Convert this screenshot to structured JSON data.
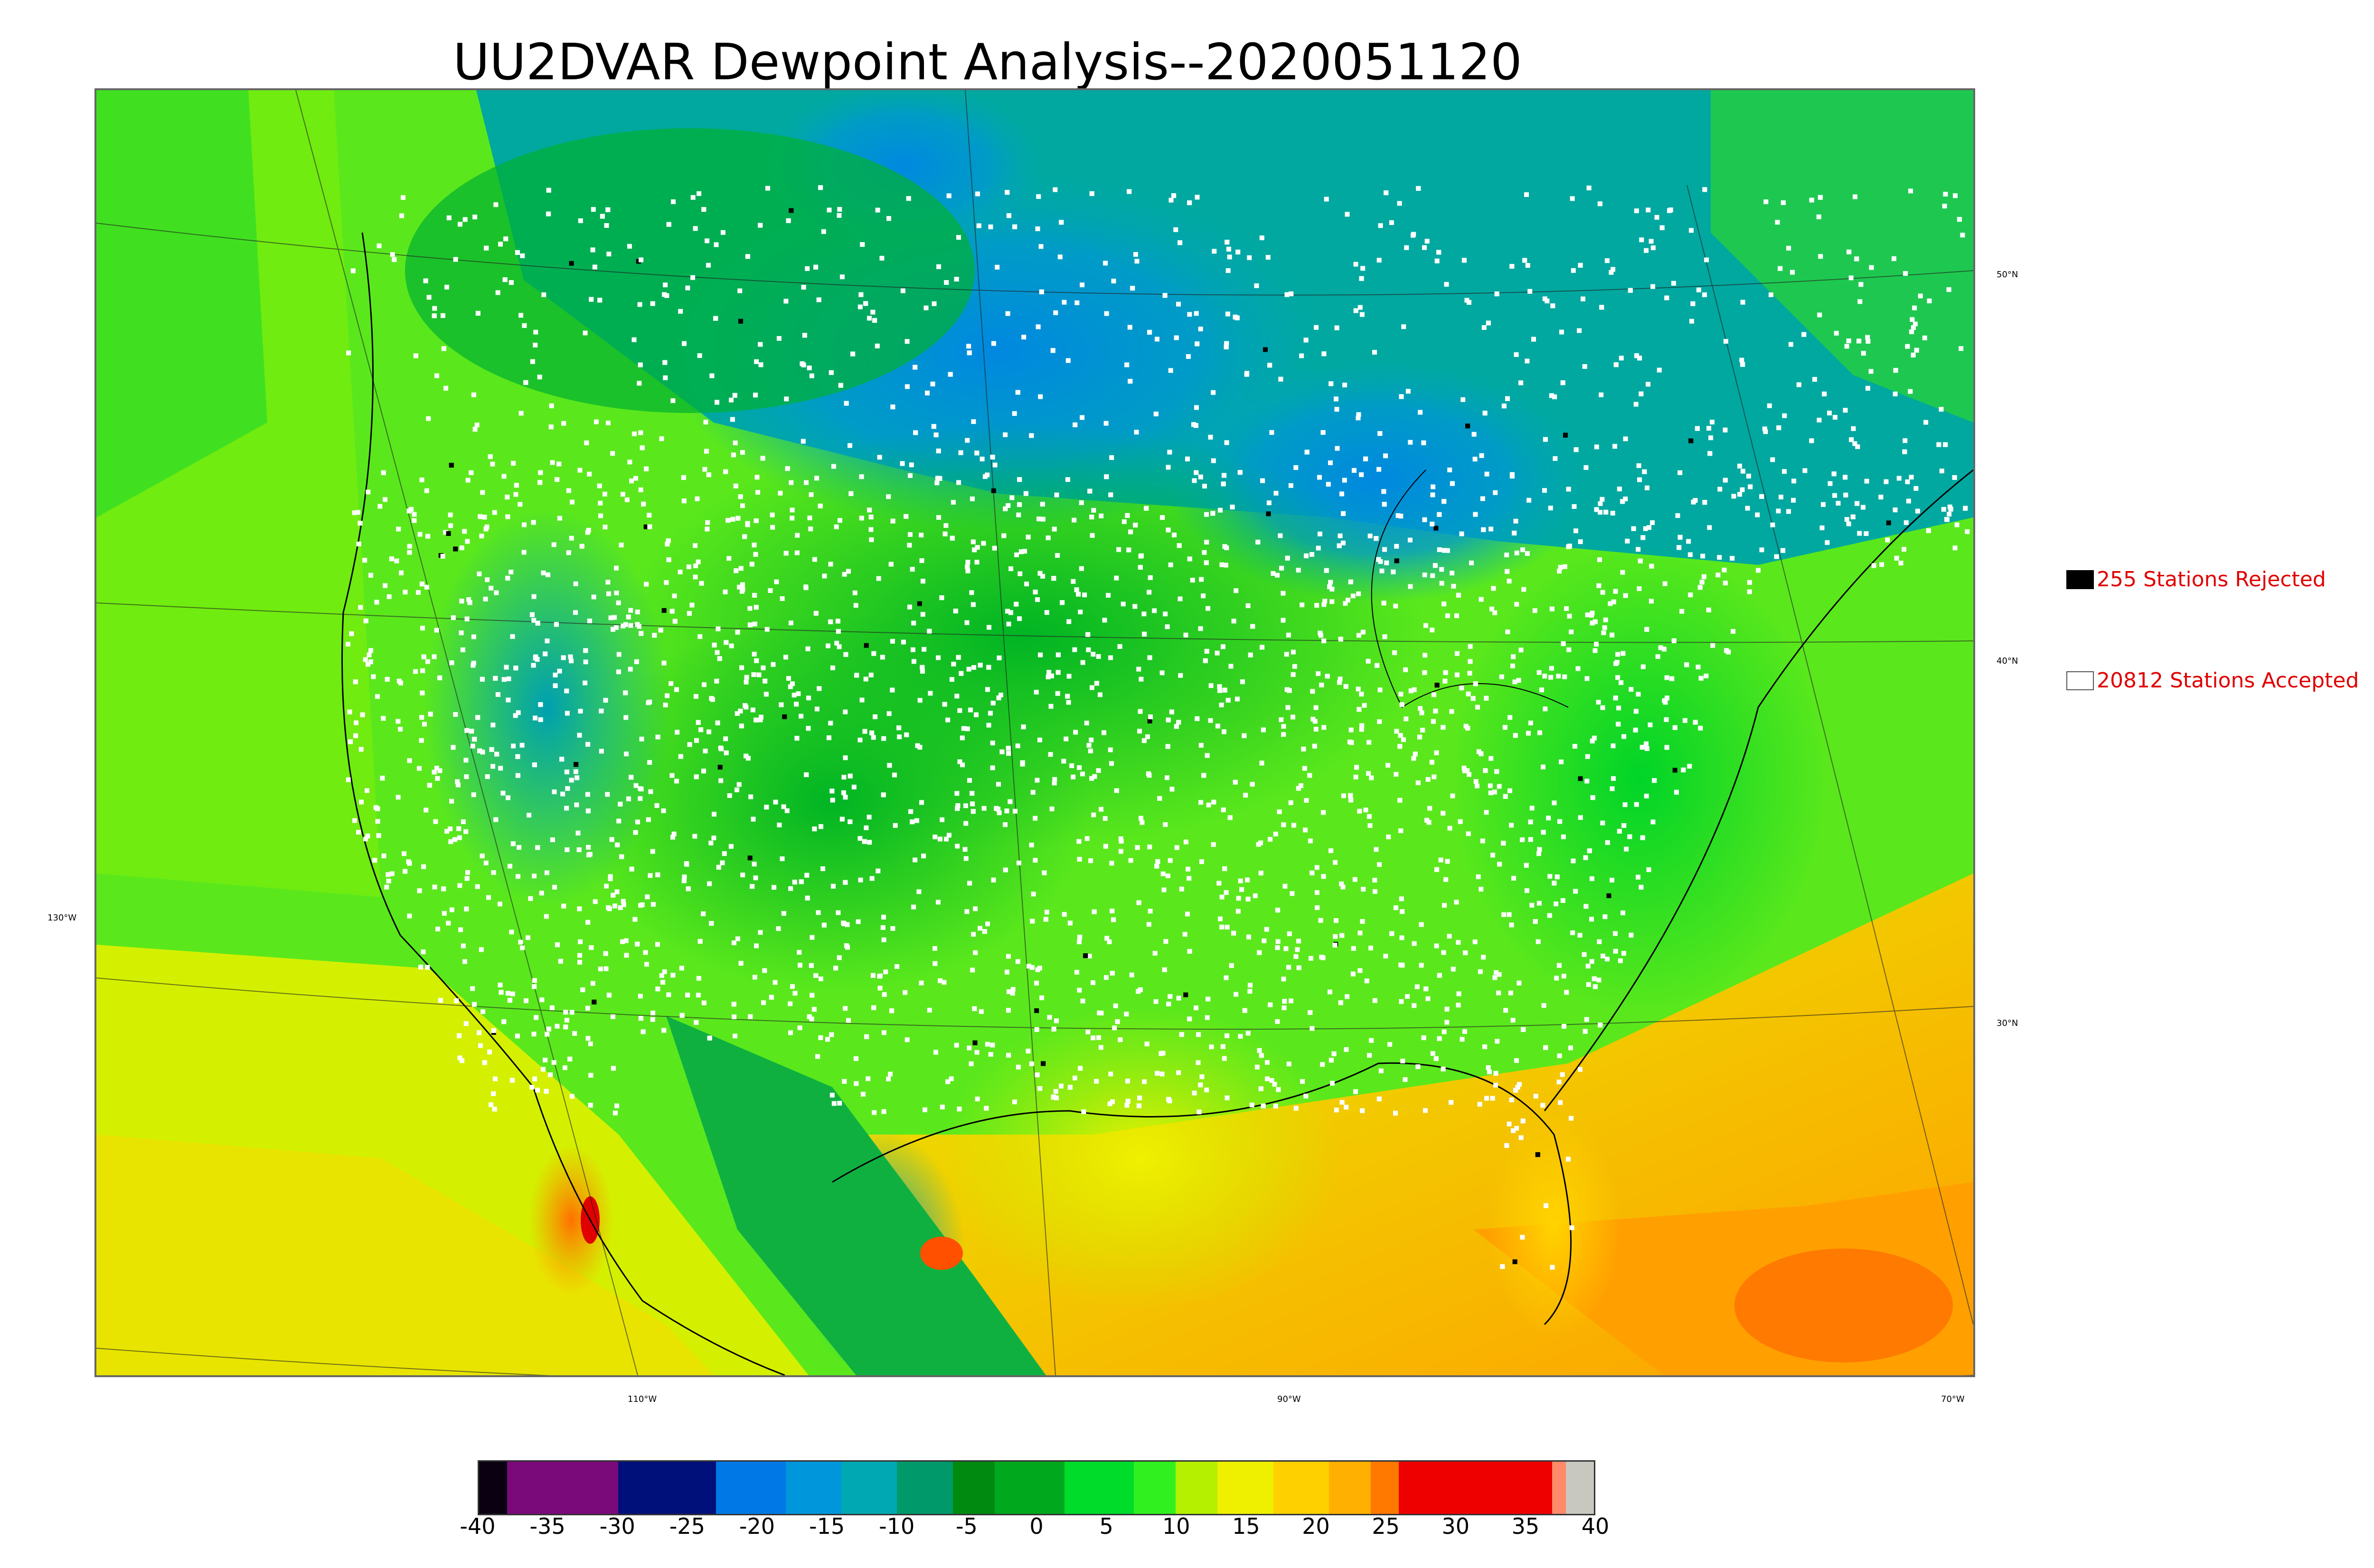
{
  "title": "UU2DVAR Dewpoint Analysis--2020051120",
  "map": {
    "lat_labels": [
      "50°N",
      "40°N",
      "30°N"
    ],
    "lon_left_label": "130°W",
    "lon_bottom_labels": [
      "110°W",
      "90°W",
      "70°W"
    ]
  },
  "legend": {
    "rejected": {
      "label": "255 Stations Rejected",
      "count": 255,
      "swatch_color": "#000000"
    },
    "accepted": {
      "label": "20812 Stations Accepted",
      "count": 20812,
      "swatch_color": "#ffffff"
    }
  },
  "colorbar": {
    "min": -40,
    "max": 40,
    "tick_labels": [
      "-40",
      "-35",
      "-30",
      "-25",
      "-20",
      "-15",
      "-10",
      "-5",
      "0",
      "5",
      "10",
      "15",
      "20",
      "25",
      "30",
      "35",
      "40"
    ],
    "segments": [
      {
        "from": -40,
        "to": -38,
        "color": "#0a0012"
      },
      {
        "from": -38,
        "to": -30,
        "color": "#7a0a7a"
      },
      {
        "from": -30,
        "to": -23,
        "color": "#00107a"
      },
      {
        "from": -23,
        "to": -18,
        "color": "#0078e6"
      },
      {
        "from": -18,
        "to": -14,
        "color": "#0096dc"
      },
      {
        "from": -14,
        "to": -10,
        "color": "#00a8b4"
      },
      {
        "from": -10,
        "to": -6,
        "color": "#009a6a"
      },
      {
        "from": -6,
        "to": -3,
        "color": "#008a10"
      },
      {
        "from": -3,
        "to": 2,
        "color": "#00a81e"
      },
      {
        "from": 2,
        "to": 7,
        "color": "#00dc2a"
      },
      {
        "from": 7,
        "to": 10,
        "color": "#30f020"
      },
      {
        "from": 10,
        "to": 13,
        "color": "#b4f000"
      },
      {
        "from": 13,
        "to": 17,
        "color": "#eef000"
      },
      {
        "from": 17,
        "to": 21,
        "color": "#ffd000"
      },
      {
        "from": 21,
        "to": 24,
        "color": "#ffb000"
      },
      {
        "from": 24,
        "to": 26,
        "color": "#ff7800"
      },
      {
        "from": 26,
        "to": 37,
        "color": "#ee0000"
      },
      {
        "from": 37,
        "to": 38,
        "color": "#ff8a6a"
      },
      {
        "from": 38,
        "to": 40,
        "color": "#c8c8c0"
      }
    ]
  }
}
